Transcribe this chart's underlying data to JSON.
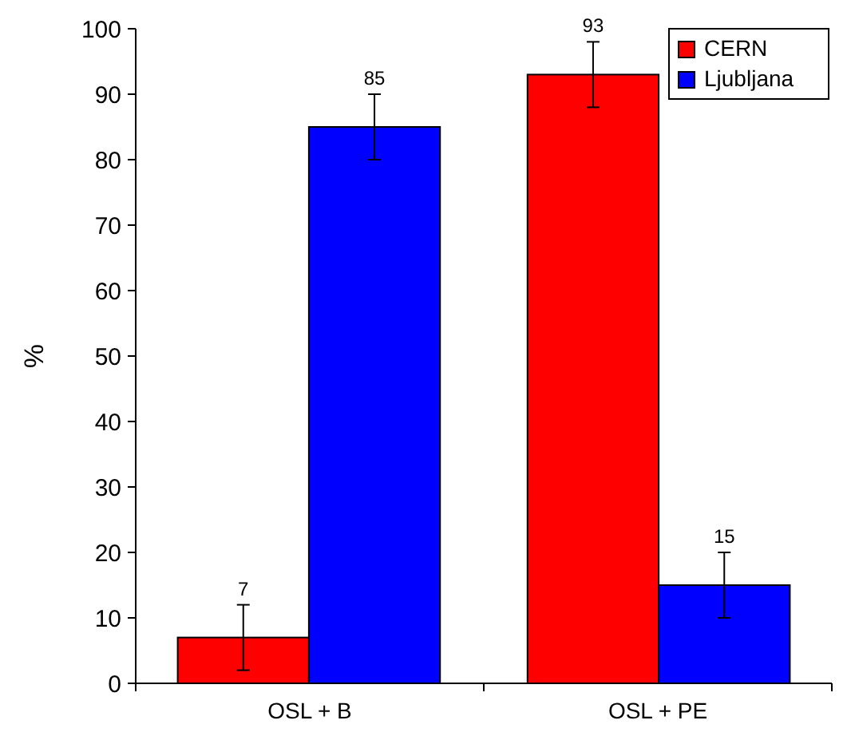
{
  "chart_data": {
    "type": "bar",
    "ylabel": "%",
    "categories": [
      "OSL + B",
      "OSL + PE"
    ],
    "series": [
      {
        "name": "CERN",
        "color": "#ff0000",
        "values": [
          7,
          93
        ],
        "errors": [
          5,
          5
        ]
      },
      {
        "name": "Ljubljana",
        "color": "#0000ff",
        "values": [
          85,
          15
        ],
        "errors": [
          5,
          5
        ]
      }
    ],
    "ylim": [
      0,
      100
    ],
    "yticks": [
      0,
      10,
      20,
      30,
      40,
      50,
      60,
      70,
      80,
      90,
      100
    ],
    "data_labels": true,
    "legend": "top right",
    "grid": false
  }
}
